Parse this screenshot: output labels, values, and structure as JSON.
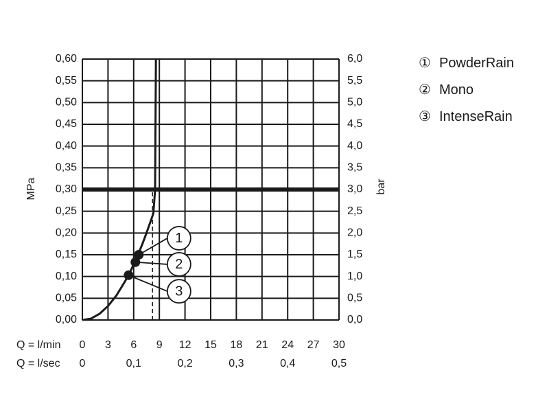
{
  "chart_data": {
    "type": "line",
    "y_left": {
      "label": "MPa",
      "ylim": [
        0,
        0.6
      ],
      "ticks": [
        "0,00",
        "0,05",
        "0,10",
        "0,15",
        "0,20",
        "0,25",
        "0,30",
        "0,35",
        "0,40",
        "0,45",
        "0,50",
        "0,55",
        "0,60"
      ]
    },
    "y_right": {
      "label": "bar",
      "ylim": [
        0,
        6
      ],
      "ticks": [
        "0,0",
        "0,5",
        "1,0",
        "1,5",
        "2,0",
        "2,5",
        "3,0",
        "3,5",
        "4,0",
        "4,5",
        "5,0",
        "5,5",
        "6,0"
      ]
    },
    "x_lpm": {
      "label": "Q = l/min",
      "xlim": [
        0,
        30
      ],
      "ticks": [
        "0",
        "3",
        "6",
        "9",
        "12",
        "15",
        "18",
        "21",
        "24",
        "27",
        "30"
      ]
    },
    "x_lps": {
      "label": "Q = l/sec",
      "ticks": [
        {
          "value": 0,
          "label": "0"
        },
        {
          "value": 0.1,
          "label": "0,1"
        },
        {
          "value": 0.2,
          "label": "0,2"
        },
        {
          "value": 0.3,
          "label": "0,3"
        },
        {
          "value": 0.4,
          "label": "0,4"
        },
        {
          "value": 0.5,
          "label": "0,5"
        }
      ]
    },
    "curve": {
      "x": [
        0,
        1,
        2,
        3,
        4,
        5,
        5.6,
        6,
        6.5,
        7,
        7.5,
        8,
        8.3,
        8.5,
        8.6
      ],
      "y": [
        0,
        0.003,
        0.014,
        0.032,
        0.057,
        0.089,
        0.111,
        0.128,
        0.15,
        0.174,
        0.2,
        0.228,
        0.245,
        0.3,
        0.6
      ]
    },
    "reference_line": {
      "y": 0.3
    },
    "dashed_marker": {
      "x": 8.2,
      "y_from": 0,
      "y_to": 0.3
    },
    "points": [
      {
        "id": 1,
        "name": "PowderRain",
        "x": 6.6,
        "y": 0.15,
        "label": "1",
        "callout": {
          "x": 11.3,
          "y": 0.188
        }
      },
      {
        "id": 2,
        "name": "Mono",
        "x": 6.2,
        "y": 0.133,
        "label": "2",
        "callout": {
          "x": 11.3,
          "y": 0.128
        }
      },
      {
        "id": 3,
        "name": "IntenseRain",
        "x": 5.4,
        "y": 0.103,
        "label": "3",
        "callout": {
          "x": 11.3,
          "y": 0.066
        }
      }
    ],
    "legend_position": "top-right",
    "grid": true
  },
  "legend": [
    {
      "symbol": "①",
      "name": "PowderRain"
    },
    {
      "symbol": "②",
      "name": "Mono"
    },
    {
      "symbol": "③",
      "name": "IntenseRain"
    }
  ],
  "colors": {
    "line": "#1a1a1a",
    "grid": "#1a1a1a",
    "background": "#ffffff"
  }
}
